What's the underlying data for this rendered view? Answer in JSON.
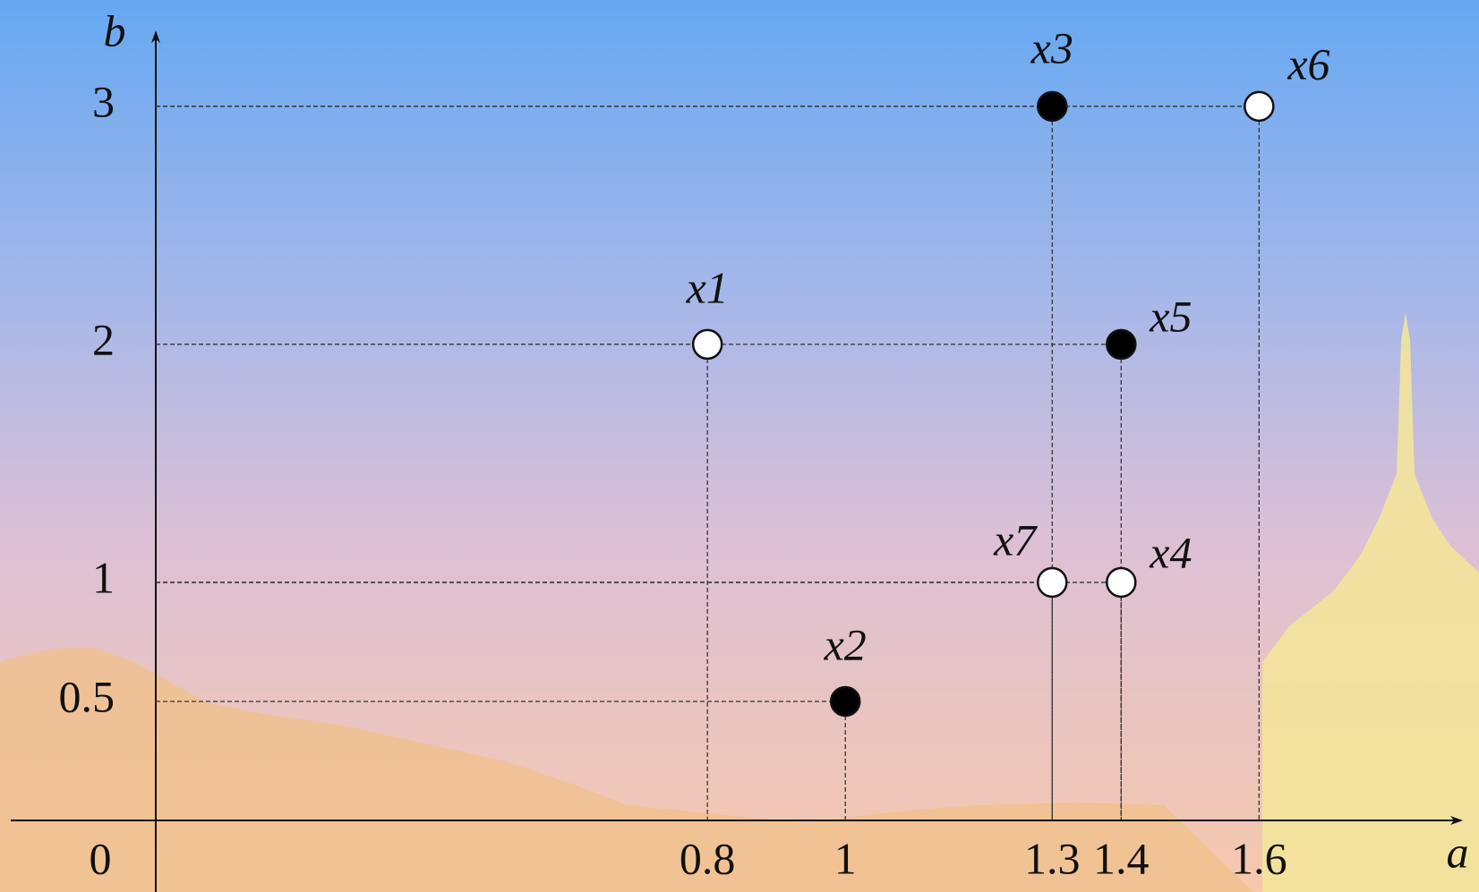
{
  "chart_data": {
    "type": "scatter",
    "x_label": "a",
    "y_label": "b",
    "labels": [
      "x1",
      "x2",
      "x3",
      "x4",
      "x5",
      "x6",
      "x7"
    ],
    "x": [
      0.8,
      1,
      1.3,
      1.4,
      1.4,
      1.6,
      1.3
    ],
    "y": [
      2,
      0.5,
      3,
      1,
      2,
      3,
      1
    ],
    "filled": [
      false,
      true,
      true,
      false,
      true,
      false,
      false
    ],
    "fill_color": "#000000",
    "hollow_color": "#ffffff",
    "xlim": [
      0,
      1.88
    ],
    "ylim": [
      0,
      3.3
    ],
    "xticks": [
      0,
      0.8,
      1,
      1.3,
      1.4,
      1.6
    ],
    "yticks": [
      0.5,
      1,
      2,
      3
    ]
  }
}
